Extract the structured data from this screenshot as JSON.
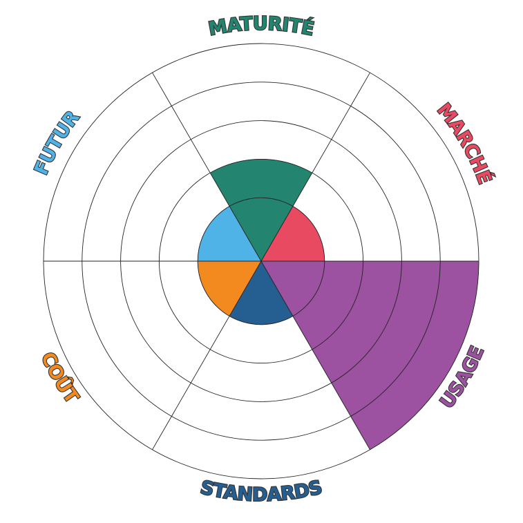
{
  "chart_data": {
    "type": "polar",
    "categories": [
      "MATURITÉ",
      "MARCHÉ",
      "USAGE",
      "STANDARDS",
      "COÛT",
      "FUTUR"
    ],
    "values": [
      2,
      1,
      5,
      1,
      1,
      1
    ],
    "colors": [
      "#23856f",
      "#e84a62",
      "#9c52a0",
      "#255e91",
      "#f28a1f",
      "#4fb3e8"
    ],
    "rlim": [
      0,
      5
    ],
    "rticks": [
      1,
      2,
      3,
      4,
      5
    ]
  }
}
